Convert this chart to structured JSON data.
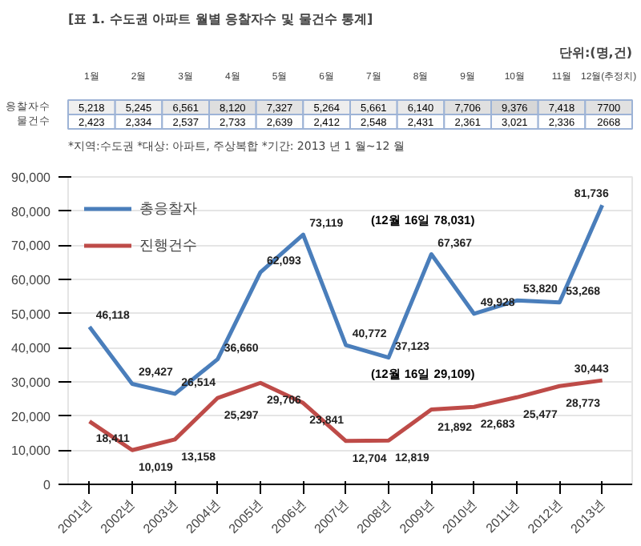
{
  "chart_data": [
    {
      "type": "heatmap",
      "title": "[표 1. 수도권 아파트 월별 응찰자수 및 물건수 통계]",
      "subtitle": "단위:(명,건)",
      "annotations": [
        "*지역:수도권   *대상: 아파트, 주상복합   *기간: 2013 년 1 월~12 월"
      ],
      "categories": [
        "1월",
        "2월",
        "3월",
        "4월",
        "5월",
        "6월",
        "7월",
        "8월",
        "9월",
        "10월",
        "11월",
        "12월(추정치)"
      ],
      "y_categories": [
        "응찰자수",
        "물건수"
      ],
      "cells": [
        [
          5218,
          5245,
          6561,
          8120,
          7327,
          5264,
          5661,
          6140,
          7706,
          9376,
          7418,
          7700
        ],
        [
          2423,
          2334,
          2537,
          2733,
          2639,
          2412,
          2548,
          2431,
          2361,
          3021,
          2336,
          2668
        ]
      ],
      "cell_labels": [
        [
          "5,218",
          "5,245",
          "6,561",
          "8,120",
          "7,327",
          "5,264",
          "5,661",
          "6,140",
          "7,706",
          "9,376",
          "7,418",
          "7700"
        ],
        [
          "2,423",
          "2,334",
          "2,537",
          "2,733",
          "2,639",
          "2,412",
          "2,548",
          "2,431",
          "2,361",
          "3,021",
          "2,336",
          "2668"
        ]
      ],
      "colors": [
        "#ffffff"
      ]
    },
    {
      "type": "line",
      "categories": [
        "2001년",
        "2002년",
        "2003년",
        "2004년",
        "2005년",
        "2006년",
        "2007년",
        "2008년",
        "2009년",
        "2010년",
        "2011년",
        "2012년",
        "2013년"
      ],
      "series": [
        {
          "name": "총응찰자",
          "color": "#4a7ebb",
          "values": [
            46118,
            29427,
            26514,
            36660,
            62093,
            73119,
            40772,
            37123,
            67367,
            49928,
            53820,
            53268,
            81736
          ],
          "value_labels": [
            "46,118",
            "29,427",
            "26,514",
            "36,660",
            "62,093",
            "73,119",
            "40,772",
            "37,123",
            "67,367",
            "49,928",
            "53,820",
            "53,268",
            "81,736"
          ]
        },
        {
          "name": "진행건수",
          "color": "#be4b48",
          "values": [
            18411,
            10019,
            13158,
            25297,
            29706,
            23841,
            12704,
            12819,
            21892,
            22683,
            25477,
            28773,
            30443
          ],
          "value_labels": [
            "18,411",
            "10,019",
            "13,158",
            "25,297",
            "29,706",
            "23,841",
            "12,704",
            "12,819",
            "21,892",
            "22,683",
            "25,477",
            "28,773",
            "30,443"
          ]
        }
      ],
      "ylim": [
        0,
        90000
      ],
      "yticks": [
        0,
        {
          "value": 10000,
          "label": "10,000"
        },
        {
          "value": 20000,
          "label": "20,000"
        },
        {
          "value": 30000,
          "label": "30,000"
        },
        {
          "value": 40000,
          "label": "40,000"
        },
        {
          "value": 50000,
          "label": "50,000"
        },
        {
          "value": 60000,
          "label": "60,000"
        },
        {
          "value": 70000,
          "label": "70,000"
        },
        {
          "value": 80000,
          "label": "80,000"
        },
        {
          "value": 90000,
          "label": "90,000"
        }
      ],
      "annotations": [
        "(12월 16일 78,031)",
        "(12월 16일 29,109)"
      ],
      "grid": "y",
      "legend": "top left",
      "marker": "none",
      "line_style": "solid"
    }
  ]
}
